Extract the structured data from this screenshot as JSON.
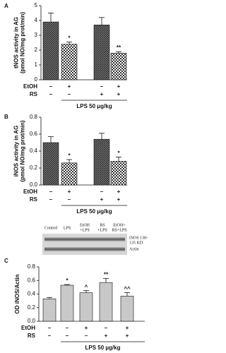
{
  "chart_data": [
    {
      "type": "bar",
      "panel": "A",
      "ylabel": [
        "tNOS activity in AG",
        "(pmol NO/mg prot/min)"
      ],
      "values": [
        3.9,
        2.4,
        3.7,
        1.8
      ],
      "errors": [
        0.6,
        0.15,
        0.5,
        0.1
      ],
      "markers": [
        null,
        "*",
        null,
        "**"
      ],
      "fills": [
        "hatch",
        "checker",
        "hatch",
        "checker"
      ],
      "ylim": [
        0,
        5
      ],
      "yticks": [
        0,
        1,
        2,
        3,
        4,
        5
      ],
      "rows": [
        {
          "name": "EtOH",
          "marks": [
            "–",
            "+",
            "–",
            "+"
          ]
        },
        {
          "name": "RS",
          "marks": [
            "–",
            "–",
            "+",
            "+"
          ]
        }
      ],
      "xlabel": "LPS 50 μg/kg"
    },
    {
      "type": "bar",
      "panel": "B",
      "ylabel": [
        "iNOS activity in AG",
        "(pmol NO/mg prot/min)"
      ],
      "values": [
        0.5,
        0.26,
        0.54,
        0.28
      ],
      "errors": [
        0.07,
        0.04,
        0.07,
        0.05
      ],
      "markers": [
        null,
        "*",
        null,
        "*"
      ],
      "fills": [
        "hatch",
        "checker",
        "hatch",
        "checker"
      ],
      "ylim": [
        0,
        0.8
      ],
      "yticks": [
        {
          "value": 0,
          "label": "0.0"
        },
        0.2,
        0.4,
        0.6,
        0.8
      ],
      "rows": [
        {
          "name": "EtOH",
          "marks": [
            "–",
            "+",
            "–",
            "+"
          ]
        },
        {
          "name": "RS",
          "marks": [
            "–",
            "–",
            "+",
            "+"
          ]
        }
      ],
      "xlabel": "LPS 50 μg/kg"
    },
    {
      "type": "bar",
      "panel": "C",
      "ylabel": [
        "OD iNOS/Actin"
      ],
      "values": [
        0.33,
        0.53,
        0.42,
        0.57,
        0.37
      ],
      "errors": [
        0.02,
        0.01,
        0.03,
        0.06,
        0.05
      ],
      "markers": [
        null,
        "*",
        "^",
        "**",
        "^^"
      ],
      "fills": [
        "#c8c8c8",
        "#c8c8c8",
        "#c8c8c8",
        "#c8c8c8",
        "#c8c8c8"
      ],
      "ylim": [
        0,
        0.8
      ],
      "yticks": [
        {
          "value": 0,
          "label": "0.0"
        },
        0.2,
        0.4,
        0.6,
        0.8
      ],
      "rows": [
        {
          "name": "EtOH",
          "marks": [
            "–",
            "–",
            "+",
            "–",
            "+"
          ]
        },
        {
          "name": "RS",
          "marks": [
            "–",
            "–",
            "–",
            "+",
            "+"
          ]
        }
      ],
      "xlabel": "LPS 50 µg/kg"
    }
  ],
  "blot": {
    "lanes": [
      [
        "Control"
      ],
      [
        "LPS"
      ],
      [
        "EtOH",
        "+LPS"
      ],
      [
        "RS",
        "+LPS"
      ],
      [
        "EtOH+",
        "RS+LPS"
      ]
    ],
    "bands": [
      [
        "iNOS 130-",
        "135 KD"
      ],
      [
        "Actin"
      ]
    ]
  }
}
